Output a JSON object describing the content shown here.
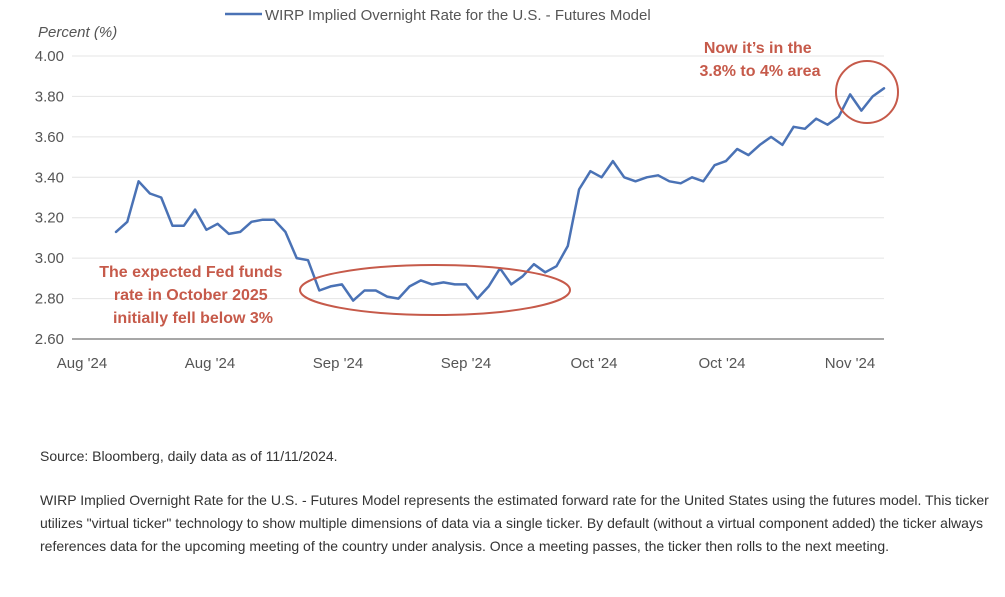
{
  "chart_data": {
    "type": "line",
    "ylabel": "Percent (%)",
    "series": [
      {
        "name": "WIRP Implied Overnight Rate for the U.S. - Futures Model",
        "color": "#4a72b5",
        "values": [
          3.13,
          3.18,
          3.38,
          3.32,
          3.3,
          3.16,
          3.16,
          3.24,
          3.14,
          3.17,
          3.12,
          3.13,
          3.18,
          3.19,
          3.19,
          3.13,
          3.0,
          2.99,
          2.84,
          2.86,
          2.87,
          2.79,
          2.84,
          2.84,
          2.81,
          2.8,
          2.86,
          2.89,
          2.87,
          2.88,
          2.87,
          2.87,
          2.8,
          2.86,
          2.95,
          2.87,
          2.91,
          2.97,
          2.93,
          2.96,
          3.06,
          3.34,
          3.43,
          3.4,
          3.48,
          3.4,
          3.38,
          3.4,
          3.41,
          3.38,
          3.37,
          3.4,
          3.38,
          3.46,
          3.48,
          3.54,
          3.51,
          3.56,
          3.6,
          3.56,
          3.65,
          3.64,
          3.69,
          3.66,
          3.7,
          3.81,
          3.73,
          3.8,
          3.84
        ]
      }
    ],
    "x_tick_labels": [
      "Aug '24",
      "Aug '24",
      "Sep '24",
      "Sep '24",
      "Oct '24",
      "Oct '24",
      "Nov '24"
    ],
    "y_ticks": [
      2.6,
      2.8,
      3.0,
      3.2,
      3.4,
      3.6,
      3.8,
      4.0
    ],
    "ylim": [
      2.6,
      4.0
    ],
    "grid": true,
    "legend": "top",
    "annotations": [
      {
        "text": [
          "The expected Fed funds",
          "rate in October 2025",
          "initially fell below 3%"
        ],
        "color": "#c65a4a"
      },
      {
        "text": [
          "Now it’s in the",
          "3.8% to 4% area"
        ],
        "color": "#c65a4a"
      }
    ]
  },
  "source": "Source: Bloomberg, daily data as of 11/11/2024.",
  "description": "WIRP Implied Overnight Rate for the U.S. - Futures Model represents the estimated forward rate for the United States using the futures model. This ticker utilizes \"virtual ticker\" technology to show multiple dimensions of data via a single ticker. By default (without a virtual component added) the ticker always references data for the upcoming meeting of the country under analysis. Once a meeting passes, the ticker then rolls to the next meeting."
}
